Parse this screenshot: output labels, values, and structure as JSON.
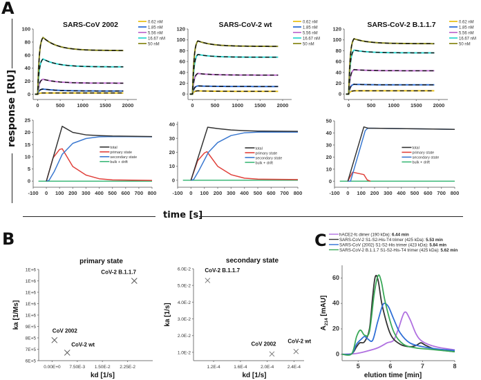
{
  "figure": {
    "panel_labels": {
      "A": "A",
      "B": "B",
      "C": "C"
    },
    "shared_ylabel_A": "response [RU]",
    "shared_xlabel_A": "time [s]"
  },
  "chart_data": [
    {
      "id": "A-top-1",
      "type": "line",
      "title": "SARS-CoV 2002",
      "xlabel": "",
      "ylabel": "",
      "xlim": [
        -100,
        2200
      ],
      "ylim": [
        -8,
        100
      ],
      "xticks": [
        0,
        500,
        1000,
        1500,
        2000
      ],
      "yticks": [
        0,
        20,
        40,
        60,
        80,
        100
      ],
      "legend": {
        "placement": "top-right",
        "entries": [
          "0.62 nM",
          "1.85 nM",
          "5.56 nM",
          "16.67 nM",
          "50 nM"
        ]
      },
      "series": [
        {
          "name": "0.62 nM",
          "color": "#e8c21c",
          "plateau": 2,
          "peak": 2
        },
        {
          "name": "1.85 nM",
          "color": "#2f6fd6",
          "plateau": 5,
          "peak": 8
        },
        {
          "name": "5.56 nM",
          "color": "#c070d0",
          "plateau": 17,
          "peak": 23
        },
        {
          "name": "16.67 nM",
          "color": "#2fd6d0",
          "plateau": 42,
          "peak": 54
        },
        {
          "name": "50 nM",
          "color": "#8a8a20",
          "plateau": 67,
          "peak": 87
        }
      ],
      "fit_overlay": "dashed black"
    },
    {
      "id": "A-top-2",
      "type": "line",
      "title": "SARS-CoV-2 wt",
      "xlim": [
        -100,
        2200
      ],
      "ylim": [
        -10,
        120
      ],
      "xticks": [
        0,
        500,
        1000,
        1500,
        2000
      ],
      "yticks": [
        0,
        20,
        40,
        60,
        80,
        100,
        120
      ],
      "legend": {
        "placement": "top-right",
        "entries": [
          "0.62 nM",
          "1.85 nM",
          "5.56 nM",
          "16.67 nM",
          "50 nM"
        ]
      },
      "series": [
        {
          "name": "0.62 nM",
          "color": "#e8c21c",
          "plateau": 5,
          "peak": 6
        },
        {
          "name": "1.85 nM",
          "color": "#2f6fd6",
          "plateau": 14,
          "peak": 15
        },
        {
          "name": "5.56 nM",
          "color": "#c070d0",
          "plateau": 35,
          "peak": 38
        },
        {
          "name": "16.67 nM",
          "color": "#2fd6d0",
          "plateau": 68,
          "peak": 73
        },
        {
          "name": "50 nM",
          "color": "#8a8a20",
          "plateau": 88,
          "peak": 98
        }
      ],
      "fit_overlay": "dashed black"
    },
    {
      "id": "A-top-3",
      "type": "line",
      "title": "SARS-CoV-2 B.1.1.7",
      "xlim": [
        -100,
        2200
      ],
      "ylim": [
        -10,
        120
      ],
      "xticks": [
        0,
        500,
        1000,
        1500,
        2000
      ],
      "yticks": [
        0,
        20,
        40,
        60,
        80,
        100,
        120
      ],
      "legend": {
        "placement": "top-right",
        "entries": [
          "0.62 nM",
          "1.85 nM",
          "5.56 nM",
          "16.67 nM",
          "50 nM"
        ]
      },
      "series": [
        {
          "name": "0.62 nM",
          "color": "#e8c21c",
          "plateau": 6,
          "peak": 6
        },
        {
          "name": "1.85 nM",
          "color": "#2f6fd6",
          "plateau": 17,
          "peak": 18
        },
        {
          "name": "5.56 nM",
          "color": "#c070d0",
          "plateau": 43,
          "peak": 45
        },
        {
          "name": "16.67 nM",
          "color": "#2fd6d0",
          "plateau": 76,
          "peak": 81
        },
        {
          "name": "50 nM",
          "color": "#8a8a20",
          "plateau": 93,
          "peak": 102
        }
      ],
      "fit_overlay": "dashed black"
    },
    {
      "id": "A-bottom-1",
      "type": "line",
      "title": "",
      "xlim": [
        -100,
        800
      ],
      "ylim": [
        -2.5,
        25
      ],
      "xticks": [
        -100,
        0,
        100,
        200,
        300,
        400,
        500,
        600,
        700,
        800
      ],
      "yticks": [
        0,
        5,
        10,
        15,
        20,
        25
      ],
      "legend": {
        "placement": "center-right",
        "entries": [
          "total",
          "primary state",
          "secondary state",
          "bulk + drift"
        ]
      },
      "series": [
        {
          "name": "total",
          "color": "#333333",
          "x": [
            0,
            120,
            200,
            300,
            400,
            500,
            800
          ],
          "y": [
            0,
            22.5,
            20,
            19,
            18.7,
            18.5,
            18.3
          ]
        },
        {
          "name": "primary state",
          "color": "#e0403a",
          "x": [
            0,
            50,
            100,
            120,
            200,
            300,
            400,
            500,
            800
          ],
          "y": [
            0,
            9.5,
            13,
            13.3,
            6,
            2.5,
            1,
            0.5,
            0.3
          ]
        },
        {
          "name": "secondary state",
          "color": "#3a78d0",
          "x": [
            0,
            20,
            60,
            120,
            200,
            300,
            400,
            500,
            800
          ],
          "y": [
            0,
            0.3,
            4,
            11,
            15.5,
            17.5,
            18.2,
            18.3,
            18.2
          ]
        },
        {
          "name": "bulk + drift",
          "color": "#3cb878",
          "x": [
            -60,
            800
          ],
          "y": [
            0,
            0
          ]
        }
      ]
    },
    {
      "id": "A-bottom-2",
      "type": "line",
      "xlim": [
        -100,
        800
      ],
      "ylim": [
        -5,
        42
      ],
      "xticks": [
        -100,
        0,
        100,
        200,
        300,
        400,
        500,
        600,
        700,
        800
      ],
      "yticks": [
        0,
        10,
        20,
        30,
        40
      ],
      "legend": {
        "placement": "center-right",
        "entries": [
          "total",
          "primary state",
          "secondary state",
          "bulk + drift"
        ]
      },
      "series": [
        {
          "name": "total",
          "color": "#333333",
          "x": [
            0,
            125,
            200,
            300,
            400,
            500,
            800
          ],
          "y": [
            0,
            38,
            37,
            36,
            35.5,
            35.2,
            35
          ]
        },
        {
          "name": "primary state",
          "color": "#e0403a",
          "x": [
            0,
            50,
            100,
            120,
            200,
            300,
            400,
            500,
            800
          ],
          "y": [
            0,
            14,
            19.5,
            20.5,
            10,
            4,
            1.5,
            0.8,
            0.5
          ]
        },
        {
          "name": "secondary state",
          "color": "#3a78d0",
          "x": [
            0,
            20,
            60,
            130,
            200,
            300,
            400,
            500,
            800
          ],
          "y": [
            0,
            0.5,
            7,
            20,
            27,
            32,
            34,
            34.5,
            34.5
          ]
        },
        {
          "name": "bulk + drift",
          "color": "#3cb878",
          "x": [
            -60,
            800
          ],
          "y": [
            0,
            0
          ]
        }
      ]
    },
    {
      "id": "A-bottom-3",
      "type": "line",
      "xlim": [
        -100,
        800
      ],
      "ylim": [
        -5,
        50
      ],
      "xticks": [
        -100,
        0,
        100,
        200,
        300,
        400,
        500,
        600,
        700,
        800
      ],
      "yticks": [
        0,
        10,
        20,
        30,
        40,
        50
      ],
      "legend": {
        "placement": "center-right",
        "entries": [
          "total",
          "primary state",
          "secondary state",
          "bulk + drift"
        ]
      },
      "series": [
        {
          "name": "total",
          "color": "#333333",
          "x": [
            0,
            120,
            150,
            800
          ],
          "y": [
            0,
            45,
            44,
            43
          ]
        },
        {
          "name": "primary state",
          "color": "#e0403a",
          "x": [
            0,
            35,
            120,
            145,
            170
          ],
          "y": [
            0,
            7.5,
            5.5,
            1,
            0
          ]
        },
        {
          "name": "secondary state",
          "color": "#3a78d0",
          "x": [
            0,
            20,
            130,
            150,
            800
          ],
          "y": [
            0,
            0,
            42,
            44,
            43
          ]
        },
        {
          "name": "bulk + drift",
          "color": "#3cb878",
          "x": [
            -60,
            800
          ],
          "y": [
            0,
            0
          ]
        }
      ]
    },
    {
      "id": "B-1",
      "type": "scatter",
      "title": "primary state",
      "xlabel": "kd  [1/s]",
      "ylabel": "ka [1/Ms]",
      "xlim": [
        -0.004,
        0.03
      ],
      "ylim": [
        600000,
        1400000
      ],
      "xticks": [
        "0.00E+0",
        "7.50E-3",
        "1.50E-2",
        "2.25E-2"
      ],
      "xtick_values": [
        0,
        0.0075,
        0.015,
        0.0225
      ],
      "yticks": [
        "6E+5",
        "7E+5",
        "8E+5",
        "9E+5",
        "1E+6",
        "1E+6",
        "1E+6",
        "1E+6",
        "1E+6"
      ],
      "points": [
        {
          "label": "CoV 2002",
          "x": 0.0007,
          "y": 780000
        },
        {
          "label": "CoV-2 wt",
          "x": 0.0045,
          "y": 670000
        },
        {
          "label": "CoV-2 B.1.1.7",
          "x": 0.0245,
          "y": 1300000
        }
      ]
    },
    {
      "id": "B-2",
      "type": "scatter",
      "title": "secondary state",
      "xlabel": "kd [1/s]",
      "ylabel": "ka [1/s]",
      "xlim": [
        9e-05,
        0.000255
      ],
      "ylim": [
        0.005,
        0.06
      ],
      "xticks": [
        "1.2E-4",
        "1.6E-4",
        "2.0E-4",
        "2.4E-4"
      ],
      "xtick_values": [
        0.00012,
        0.00016,
        0.0002,
        0.00024
      ],
      "yticks": [
        "1.0E-2",
        "2.0E-2",
        "3.0E-2",
        "4.0E-2",
        "5.0E-2",
        "6.0E-2"
      ],
      "ytick_values": [
        0.01,
        0.02,
        0.03,
        0.04,
        0.05,
        0.06
      ],
      "points": [
        {
          "label": "CoV-2 B.1.1.7",
          "x": 0.000111,
          "y": 0.053
        },
        {
          "label": "CoV 2002",
          "x": 0.000207,
          "y": 0.009
        },
        {
          "label": "CoV-2 wt",
          "x": 0.000243,
          "y": 0.0105
        }
      ]
    },
    {
      "id": "C",
      "type": "line",
      "title": "",
      "xlabel": "elution time [min]",
      "ylabel": "A214 [mAU]",
      "xlim": [
        4.5,
        8
      ],
      "ylim": [
        -5,
        70
      ],
      "xticks": [
        5,
        6,
        7,
        8
      ],
      "yticks": [
        0,
        20,
        40,
        60
      ],
      "legend": {
        "placement": "top",
        "entries": [
          {
            "text": "hACE2-fc dimer (190 kDa): ",
            "bold": "6.44 min"
          },
          {
            "text": "SARS-CoV-2 S1-S2-His-T4 trimer (425 kDa): ",
            "bold": "5.53 min"
          },
          {
            "text": "SARS-CoV (2002) S1-S2-His trimer (423 kDa): ",
            "bold": "5.84 min"
          },
          {
            "text": "SARS-CoV-2 B.1.1.7 S1-S2-His-T4 trimer (425 kDa): ",
            "bold": "5.62 min"
          }
        ]
      },
      "series": [
        {
          "name": "hACE2-fc dimer",
          "color": "#b070e0",
          "x": [
            4.5,
            4.9,
            5.2,
            5.6,
            5.9,
            6.1,
            6.25,
            6.44,
            6.6,
            6.8,
            7.0,
            7.4,
            8.0
          ],
          "y": [
            0,
            0.5,
            2,
            5,
            9,
            11,
            20,
            33,
            28,
            16,
            10,
            6,
            3.5
          ]
        },
        {
          "name": "SARS-CoV-2 S1-S2-His-T4 trimer",
          "color": "#333333",
          "x": [
            4.5,
            4.8,
            4.95,
            5.05,
            5.2,
            5.35,
            5.45,
            5.53,
            5.62,
            5.75,
            6.0,
            6.3,
            6.6,
            6.8,
            6.95,
            7.1,
            7.4,
            8.0
          ],
          "y": [
            0,
            0.5,
            6,
            9,
            10,
            20,
            45,
            61,
            58,
            38,
            16,
            8,
            6,
            7,
            9,
            7,
            4,
            2
          ]
        },
        {
          "name": "SARS-CoV (2002) S1-S2-His trimer",
          "color": "#2f6fd6",
          "x": [
            4.5,
            4.8,
            4.95,
            5.1,
            5.2,
            5.3,
            5.45,
            5.6,
            5.75,
            5.84,
            5.95,
            6.1,
            6.3,
            6.6,
            7.0,
            7.5,
            8.0
          ],
          "y": [
            0,
            0.5,
            8,
            12,
            14,
            12,
            11,
            25,
            38,
            40,
            37,
            28,
            17,
            9,
            6,
            4,
            3
          ]
        },
        {
          "name": "SARS-CoV-2 B.1.1.7 S1-S2-His-T4 trimer",
          "color": "#3aa858",
          "x": [
            4.5,
            4.8,
            4.95,
            5.07,
            5.2,
            5.35,
            5.5,
            5.62,
            5.72,
            5.85,
            6.1,
            6.4,
            6.8,
            7.2,
            8.0
          ],
          "y": [
            0,
            0.5,
            14,
            19,
            15,
            18,
            48,
            62,
            57,
            40,
            18,
            8,
            5,
            4,
            2
          ]
        }
      ]
    }
  ]
}
